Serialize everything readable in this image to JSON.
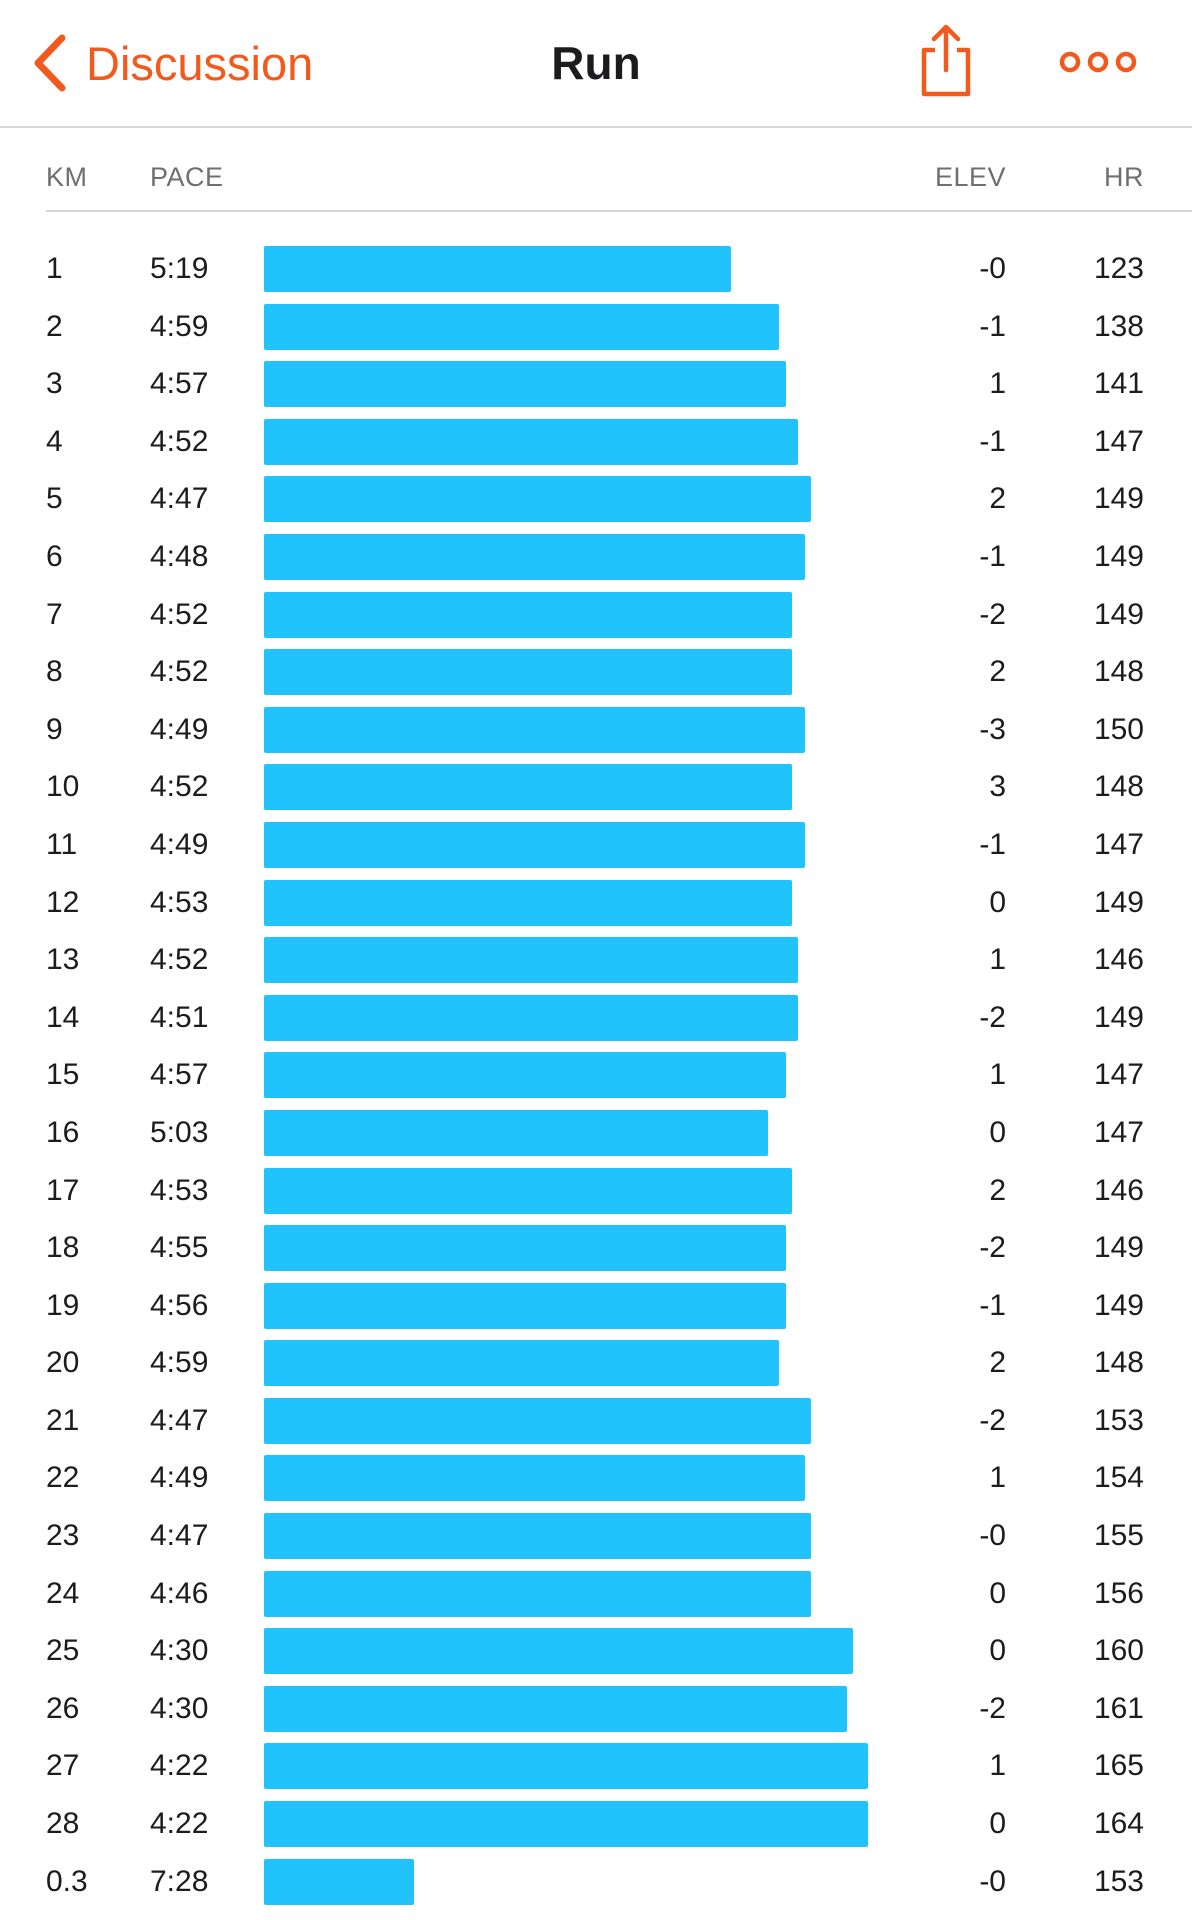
{
  "nav": {
    "back_label": "Discussion",
    "title": "Run"
  },
  "colors": {
    "accent": "#f25a1d",
    "bar": "#21c3fd"
  },
  "icons": {
    "back": "chevron-left-icon",
    "share": "share-icon",
    "more": "more-icon"
  },
  "columns": {
    "km": "KM",
    "pace": "PACE",
    "elev": "ELEV",
    "hr": "HR"
  },
  "splits": [
    {
      "km": "1",
      "pace": "5:19",
      "elev": "-0",
      "hr": "123",
      "speed": 0.773
    },
    {
      "km": "2",
      "pace": "4:59",
      "elev": "-1",
      "hr": "138",
      "speed": 0.853
    },
    {
      "km": "3",
      "pace": "4:57",
      "elev": "1",
      "hr": "141",
      "speed": 0.864
    },
    {
      "km": "4",
      "pace": "4:52",
      "elev": "-1",
      "hr": "147",
      "speed": 0.884
    },
    {
      "km": "5",
      "pace": "4:47",
      "elev": "2",
      "hr": "149",
      "speed": 0.905
    },
    {
      "km": "6",
      "pace": "4:48",
      "elev": "-1",
      "hr": "149",
      "speed": 0.895
    },
    {
      "km": "7",
      "pace": "4:52",
      "elev": "-2",
      "hr": "149",
      "speed": 0.874
    },
    {
      "km": "8",
      "pace": "4:52",
      "elev": "2",
      "hr": "148",
      "speed": 0.874
    },
    {
      "km": "9",
      "pace": "4:49",
      "elev": "-3",
      "hr": "150",
      "speed": 0.895
    },
    {
      "km": "10",
      "pace": "4:52",
      "elev": "3",
      "hr": "148",
      "speed": 0.874
    },
    {
      "km": "11",
      "pace": "4:49",
      "elev": "-1",
      "hr": "147",
      "speed": 0.895
    },
    {
      "km": "12",
      "pace": "4:53",
      "elev": "0",
      "hr": "149",
      "speed": 0.874
    },
    {
      "km": "13",
      "pace": "4:52",
      "elev": "1",
      "hr": "146",
      "speed": 0.884
    },
    {
      "km": "14",
      "pace": "4:51",
      "elev": "-2",
      "hr": "149",
      "speed": 0.884
    },
    {
      "km": "15",
      "pace": "4:57",
      "elev": "1",
      "hr": "147",
      "speed": 0.864
    },
    {
      "km": "16",
      "pace": "5:03",
      "elev": "0",
      "hr": "147",
      "speed": 0.834
    },
    {
      "km": "17",
      "pace": "4:53",
      "elev": "2",
      "hr": "146",
      "speed": 0.874
    },
    {
      "km": "18",
      "pace": "4:55",
      "elev": "-2",
      "hr": "149",
      "speed": 0.864
    },
    {
      "km": "19",
      "pace": "4:56",
      "elev": "-1",
      "hr": "149",
      "speed": 0.864
    },
    {
      "km": "20",
      "pace": "4:59",
      "elev": "2",
      "hr": "148",
      "speed": 0.853
    },
    {
      "km": "21",
      "pace": "4:47",
      "elev": "-2",
      "hr": "153",
      "speed": 0.905
    },
    {
      "km": "22",
      "pace": "4:49",
      "elev": "1",
      "hr": "154",
      "speed": 0.895
    },
    {
      "km": "23",
      "pace": "4:47",
      "elev": "-0",
      "hr": "155",
      "speed": 0.905
    },
    {
      "km": "24",
      "pace": "4:46",
      "elev": "0",
      "hr": "156",
      "speed": 0.905
    },
    {
      "km": "25",
      "pace": "4:30",
      "elev": "0",
      "hr": "160",
      "speed": 0.975
    },
    {
      "km": "26",
      "pace": "4:30",
      "elev": "-2",
      "hr": "161",
      "speed": 0.966
    },
    {
      "km": "27",
      "pace": "4:22",
      "elev": "1",
      "hr": "165",
      "speed": 1.0
    },
    {
      "km": "28",
      "pace": "4:22",
      "elev": "0",
      "hr": "164",
      "speed": 1.0
    },
    {
      "km": "0.3",
      "pace": "7:28",
      "elev": "-0",
      "hr": "153",
      "speed": 0.249
    }
  ]
}
